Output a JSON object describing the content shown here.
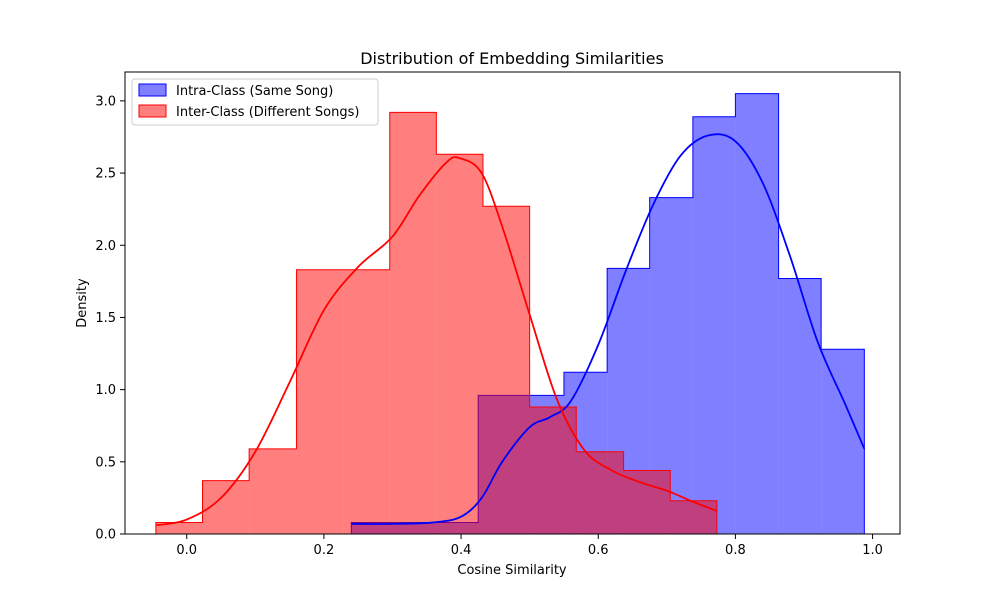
{
  "chart_data": {
    "type": "histogram",
    "title": "Distribution of Embedding Similarities",
    "xlabel": "Cosine Similarity",
    "ylabel": "Density",
    "xlim": [
      -0.09,
      1.04
    ],
    "ylim": [
      0,
      3.2
    ],
    "xticks": [
      0.0,
      0.2,
      0.4,
      0.6,
      0.8,
      1.0
    ],
    "xtick_labels": [
      "0.0",
      "0.2",
      "0.4",
      "0.6",
      "0.8",
      "1.0"
    ],
    "yticks": [
      0.0,
      0.5,
      1.0,
      1.5,
      2.0,
      2.5,
      3.0
    ],
    "ytick_labels": [
      "0.0",
      "0.5",
      "1.0",
      "1.5",
      "2.0",
      "2.5",
      "3.0"
    ],
    "grid": false,
    "legend_position": "top-left",
    "series": [
      {
        "name": "Intra-Class (Same Song)",
        "color": "#0000ff",
        "bin_edges": [
          0.24,
          0.425,
          0.55,
          0.613,
          0.675,
          0.738,
          0.8,
          0.863,
          0.925,
          0.988
        ],
        "densities": [
          0.08,
          0.96,
          1.12,
          1.84,
          2.33,
          2.89,
          3.05,
          1.77,
          1.28
        ],
        "kde_x": [
          0.24,
          0.3,
          0.36,
          0.4,
          0.43,
          0.46,
          0.5,
          0.53,
          0.56,
          0.6,
          0.64,
          0.68,
          0.72,
          0.76,
          0.8,
          0.84,
          0.88,
          0.92,
          0.96,
          0.988
        ],
        "kde_y": [
          0.07,
          0.07,
          0.08,
          0.12,
          0.25,
          0.5,
          0.74,
          0.81,
          0.92,
          1.31,
          1.82,
          2.28,
          2.62,
          2.76,
          2.72,
          2.43,
          1.92,
          1.33,
          0.9,
          0.59
        ]
      },
      {
        "name": "Inter-Class (Different Songs)",
        "color": "#ff0000",
        "bin_edges": [
          -0.045,
          0.023,
          0.091,
          0.16,
          0.228,
          0.296,
          0.364,
          0.432,
          0.5,
          0.568,
          0.637,
          0.705,
          0.773
        ],
        "densities": [
          0.08,
          0.37,
          0.59,
          1.83,
          1.83,
          2.92,
          2.63,
          2.27,
          0.88,
          0.57,
          0.44,
          0.23
        ],
        "kde_x": [
          -0.045,
          0.0,
          0.05,
          0.1,
          0.15,
          0.2,
          0.25,
          0.3,
          0.34,
          0.38,
          0.4,
          0.43,
          0.46,
          0.5,
          0.54,
          0.58,
          0.62,
          0.66,
          0.7,
          0.74,
          0.773
        ],
        "kde_y": [
          0.06,
          0.1,
          0.25,
          0.57,
          1.05,
          1.55,
          1.85,
          2.06,
          2.35,
          2.58,
          2.6,
          2.5,
          2.13,
          1.52,
          0.93,
          0.58,
          0.44,
          0.36,
          0.3,
          0.22,
          0.16
        ]
      }
    ],
    "overlap_color": "#b5376e"
  }
}
